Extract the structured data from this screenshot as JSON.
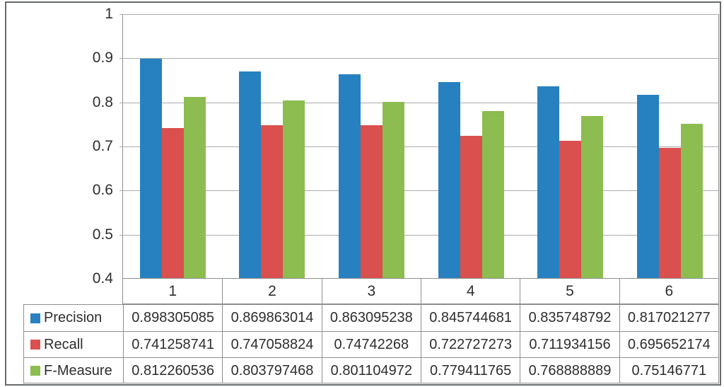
{
  "chart_data": {
    "type": "bar",
    "title": "",
    "xlabel": "",
    "ylabel": "",
    "categories": [
      "1",
      "2",
      "3",
      "4",
      "5",
      "6"
    ],
    "series": [
      {
        "name": "Precision",
        "color": "#2781c0",
        "values": [
          0.898305085,
          0.869863014,
          0.863095238,
          0.845744681,
          0.835748792,
          0.817021277
        ]
      },
      {
        "name": "Recall",
        "color": "#d9504e",
        "values": [
          0.741258741,
          0.747058824,
          0.74742268,
          0.722727273,
          0.711934156,
          0.695652174
        ]
      },
      {
        "name": "F-Measure",
        "color": "#8dbc50",
        "values": [
          0.812260536,
          0.803797468,
          0.801104972,
          0.779411765,
          0.768888889,
          0.75146771
        ]
      }
    ],
    "y_axis": {
      "min": 0.4,
      "max": 1.0,
      "tick_labels": [
        "1",
        "0.9",
        "0.8",
        "0.7",
        "0.6",
        "0.5",
        "0.4"
      ],
      "tick_values": [
        1,
        0.9,
        0.8,
        0.7,
        0.6,
        0.5,
        0.4
      ]
    },
    "grid": true,
    "legend_position": "data-table-left-column"
  },
  "data_table": {
    "rows": [
      {
        "label": "Precision",
        "swatch_color": "#2781c0",
        "cells": [
          "0.898305085",
          "0.869863014",
          "0.863095238",
          "0.845744681",
          "0.835748792",
          "0.817021277"
        ]
      },
      {
        "label": "Recall",
        "swatch_color": "#d9504e",
        "cells": [
          "0.741258741",
          "0.747058824",
          "0.74742268",
          "0.722727273",
          "0.711934156",
          "0.695652174"
        ]
      },
      {
        "label": "F-Measure",
        "swatch_color": "#8dbc50",
        "cells": [
          "0.812260536",
          "0.803797468",
          "0.801104972",
          "0.779411765",
          "0.768888889",
          "0.75146771"
        ]
      }
    ]
  },
  "colors": {
    "precision": "#2781c0",
    "recall": "#d9504e",
    "fmeasure": "#8dbc50",
    "gridline": "#ababab",
    "axis_line": "#8c8f92",
    "outer_border": "#666a6d",
    "text": "#2e2e2e",
    "background": "#ffffff"
  }
}
